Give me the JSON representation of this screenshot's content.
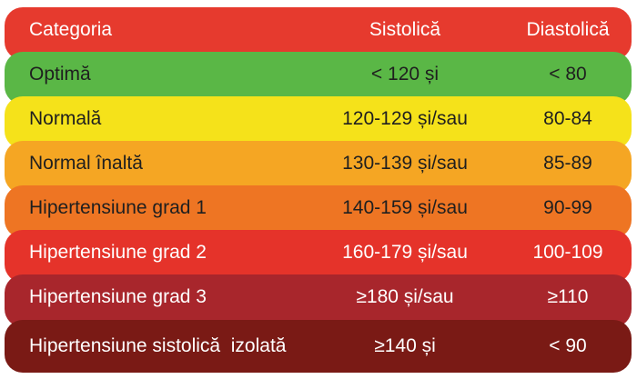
{
  "header": {
    "category": "Categoria",
    "systolic": "Sistolică",
    "diastolic": "Diastolică"
  },
  "rows": [
    {
      "category": "Optimă",
      "systolic": "< 120 și",
      "diastolic": "< 80"
    },
    {
      "category": "Normală",
      "systolic": "120-129 și/sau",
      "diastolic": "80-84"
    },
    {
      "category": "Normal înaltă",
      "systolic": "130-139 și/sau",
      "diastolic": "85-89"
    },
    {
      "category": "Hipertensiune grad 1",
      "systolic": "140-159 și/sau",
      "diastolic": "90-99"
    },
    {
      "category": "Hipertensiune grad 2",
      "systolic": "160-179 și/sau",
      "diastolic": "100-109"
    },
    {
      "category": "Hipertensiune grad 3",
      "systolic": "≥180 și/sau",
      "diastolic": "≥110"
    },
    {
      "category": "Hipertensiune sistolică  izolată",
      "systolic": "≥140 și",
      "diastolic": "< 90"
    }
  ],
  "colors": {
    "header": "#e63a2e",
    "optimal": "#5ab746",
    "normal": "#f5e21a",
    "high_normal": "#f5a623",
    "grade1": "#ee7523",
    "grade2": "#e5332a",
    "grade3": "#a8262c",
    "isolated_systolic": "#7a1a15"
  }
}
